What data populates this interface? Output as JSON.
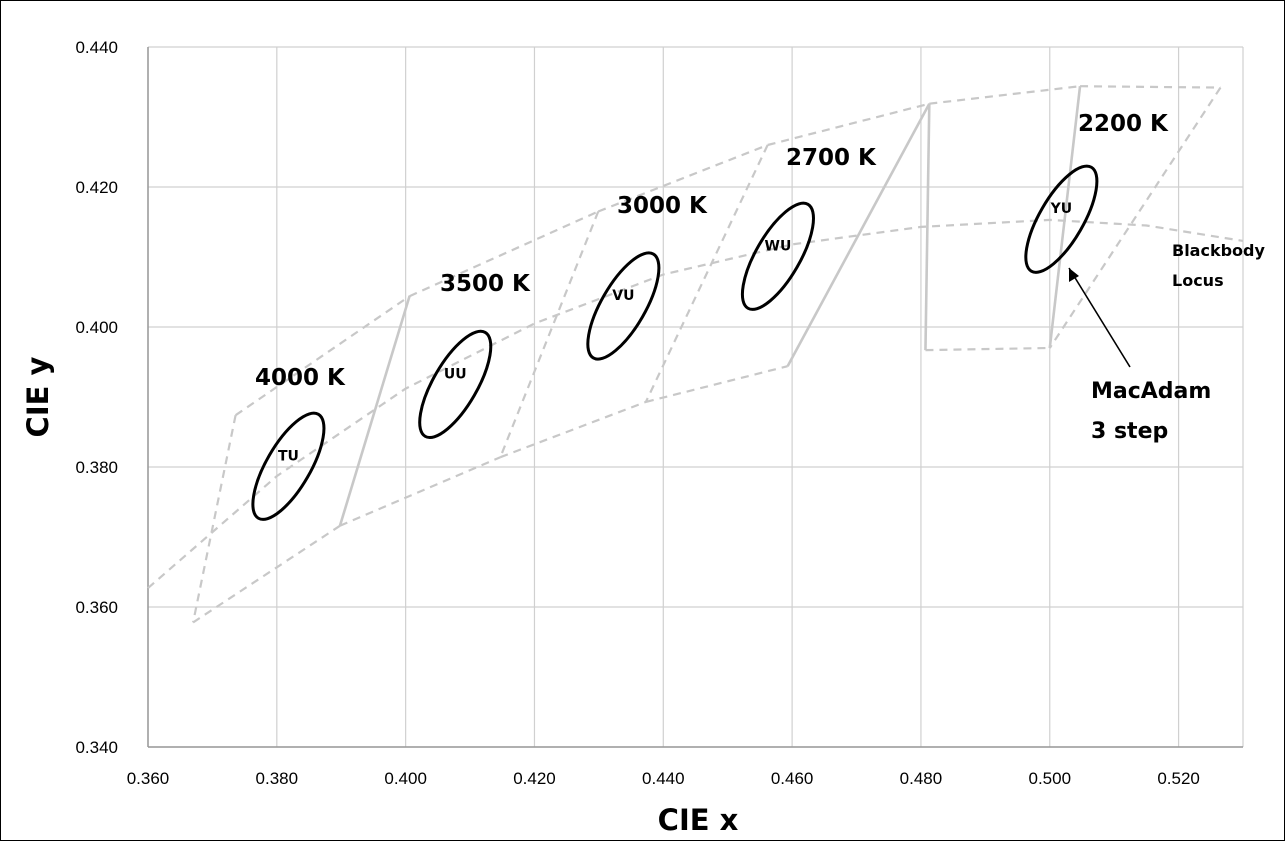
{
  "chart_data": {
    "type": "scatter",
    "xlabel": "CIE x",
    "ylabel": "CIE y",
    "xlim": [
      0.36,
      0.53
    ],
    "ylim": [
      0.34,
      0.44
    ],
    "x_ticks": [
      "0.360",
      "0.380",
      "0.400",
      "0.420",
      "0.440",
      "0.460",
      "0.480",
      "0.500",
      "0.520"
    ],
    "y_ticks": [
      "0.340",
      "0.360",
      "0.380",
      "0.400",
      "0.420",
      "0.440"
    ],
    "grid": true,
    "blackbody_locus": {
      "x": [
        0.36,
        0.38,
        0.4,
        0.42,
        0.44,
        0.46,
        0.48,
        0.5,
        0.515,
        0.53
      ],
      "y": [
        0.3627,
        0.3787,
        0.3912,
        0.4005,
        0.4075,
        0.4118,
        0.4143,
        0.4153,
        0.4145,
        0.4123
      ]
    },
    "cct_quadrangles": [
      {
        "label": "4000 K",
        "x": [
          0.3736,
          0.4006,
          0.3898,
          0.367
        ],
        "y": [
          0.3874,
          0.4044,
          0.3716,
          0.3578
        ]
      },
      {
        "label": "3500 K",
        "x": [
          0.4006,
          0.4299,
          0.4147,
          0.3898
        ],
        "y": [
          0.4044,
          0.4165,
          0.3814,
          0.3716
        ]
      },
      {
        "label": "3000 K",
        "x": [
          0.4299,
          0.4562,
          0.4373,
          0.4147
        ],
        "y": [
          0.4165,
          0.426,
          0.3893,
          0.3814
        ]
      },
      {
        "label": "2700 K",
        "x": [
          0.4562,
          0.4813,
          0.4593,
          0.4373
        ],
        "y": [
          0.426,
          0.4319,
          0.3944,
          0.3893
        ]
      },
      {
        "label": "2200 K",
        "x": [
          0.4813,
          0.5047,
          0.5,
          0.4807
        ],
        "y": [
          0.4319,
          0.4344,
          0.397,
          0.3967
        ]
      }
    ],
    "outer_boundary_2200K": {
      "x": [
        0.5047,
        0.5265,
        0.5
      ],
      "y": [
        0.4344,
        0.4342,
        0.397
      ]
    },
    "macadam_ellipses": [
      {
        "label": "TU",
        "cx": 0.3818,
        "cy": 0.3801
      },
      {
        "label": "UU",
        "cx": 0.4077,
        "cy": 0.3918
      },
      {
        "label": "VU",
        "cx": 0.4338,
        "cy": 0.403
      },
      {
        "label": "WU",
        "cx": 0.4578,
        "cy": 0.4101
      },
      {
        "label": "YU",
        "cx": 0.5018,
        "cy": 0.4154
      }
    ],
    "annotations": {
      "blackbody_label": [
        "Blackbody",
        "Locus"
      ],
      "macadam_label": [
        "MacAdam",
        "3 step"
      ]
    },
    "colors": {
      "grid": "#d0d0d0",
      "dashed": "#c8c8c8",
      "quad_solid": "#c8c8c8",
      "ellipse": "#000000"
    }
  }
}
